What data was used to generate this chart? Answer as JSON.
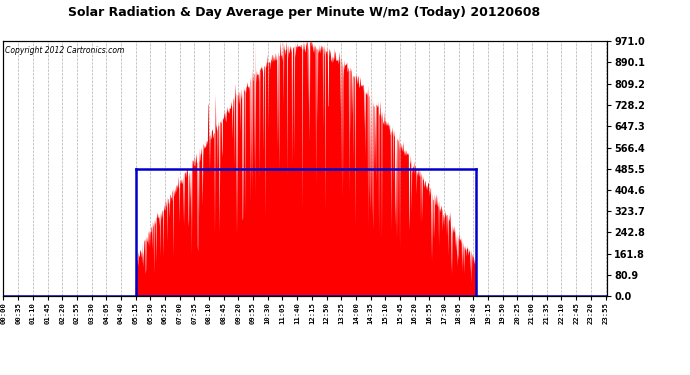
{
  "title": "Solar Radiation & Day Average per Minute W/m2 (Today) 20120608",
  "copyright": "Copyright 2012 Cartronics.com",
  "ytick_values": [
    0.0,
    80.9,
    161.8,
    242.8,
    323.7,
    404.6,
    485.5,
    566.4,
    647.3,
    728.2,
    809.2,
    890.1,
    971.0
  ],
  "ymax": 971.0,
  "ymin": 0.0,
  "bg_color": "#ffffff",
  "fill_color": "#ff0000",
  "box_color": "#0000cc",
  "avg_value": 485.5,
  "sunrise_minute": 315,
  "sunset_minute": 1127,
  "total_minutes": 1440,
  "tick_interval_minutes": 35,
  "figwidth": 6.9,
  "figheight": 3.75,
  "dpi": 100
}
